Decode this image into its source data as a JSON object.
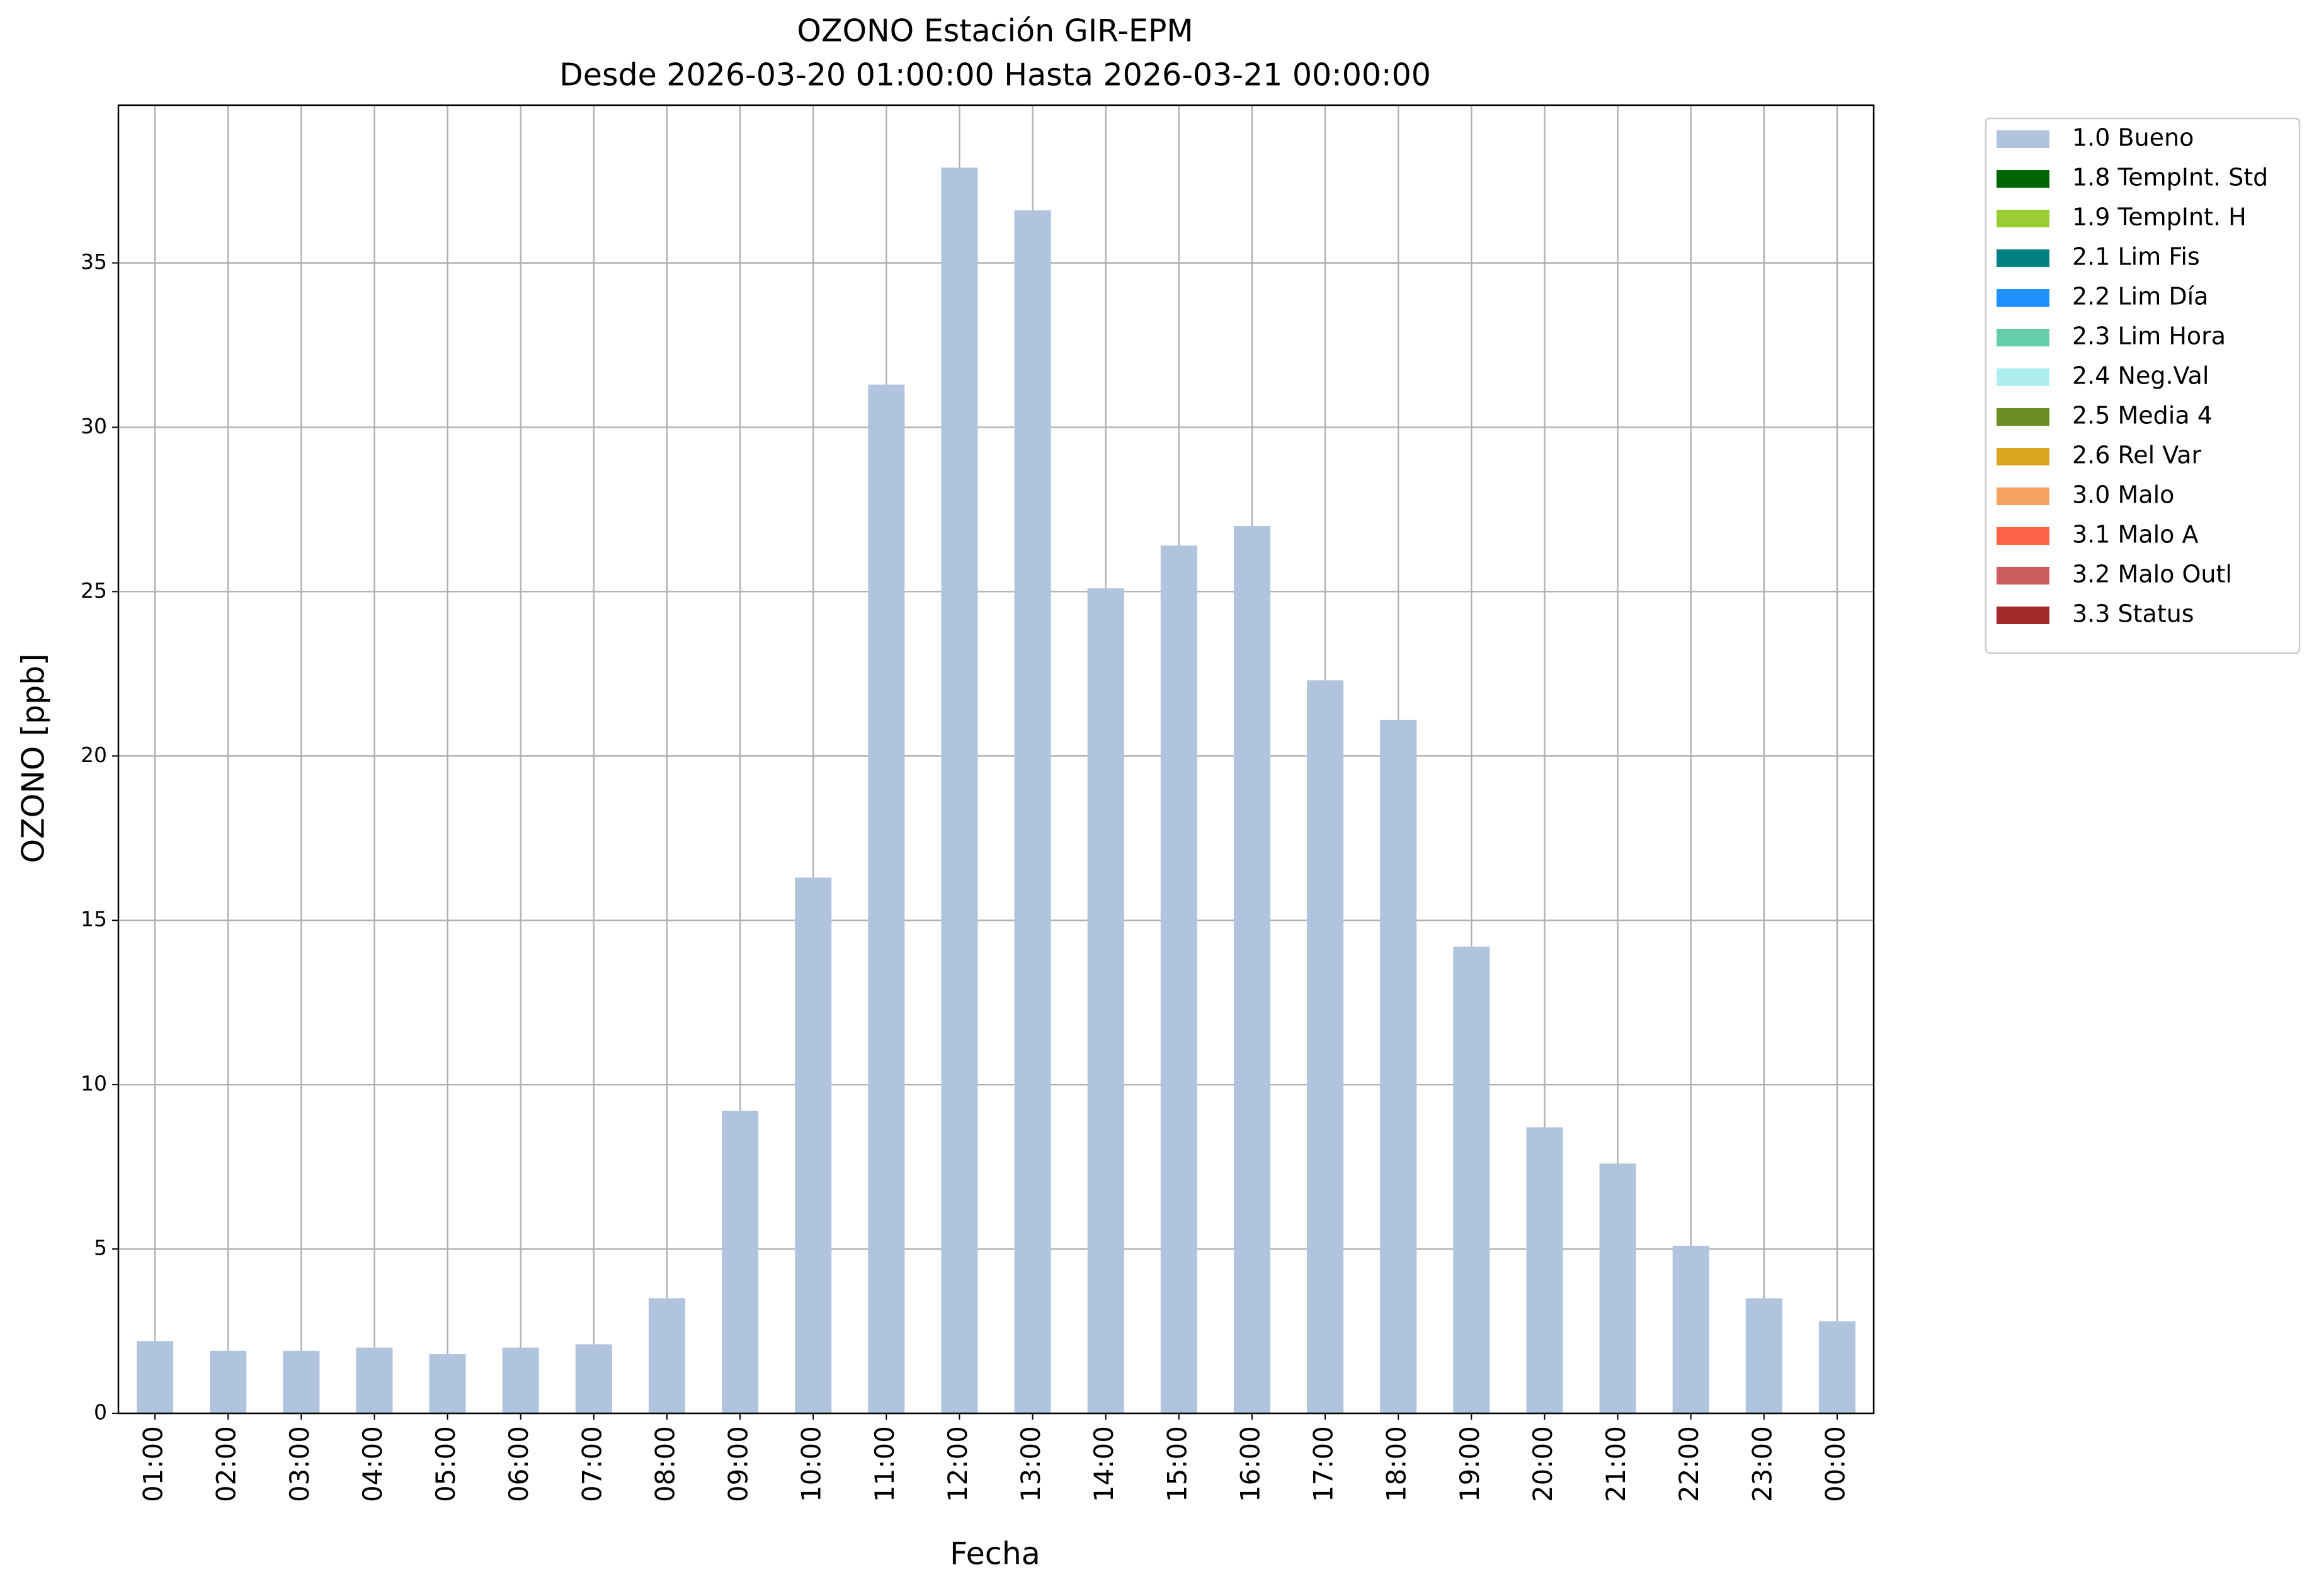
{
  "chart_data": {
    "type": "bar",
    "title": "OZONO Estación GIR-EPM",
    "subtitle": "Desde 2026-03-20 01:00:00 Hasta 2026-03-21 00:00:00",
    "x_label": "Fecha",
    "y_label": "OZONO [ppb]",
    "categories": [
      "01:00",
      "02:00",
      "03:00",
      "04:00",
      "05:00",
      "06:00",
      "07:00",
      "08:00",
      "09:00",
      "10:00",
      "11:00",
      "12:00",
      "13:00",
      "14:00",
      "15:00",
      "16:00",
      "17:00",
      "18:00",
      "19:00",
      "20:00",
      "21:00",
      "22:00",
      "23:00",
      "00:00"
    ],
    "series": [
      {
        "name": "1.0 Bueno",
        "color": "#b0c4de",
        "values": [
          2.2,
          1.9,
          1.9,
          2.0,
          1.8,
          2.0,
          2.1,
          3.5,
          9.2,
          16.3,
          31.3,
          37.9,
          36.6,
          25.1,
          26.4,
          27.0,
          22.3,
          21.1,
          14.2,
          8.7,
          7.6,
          5.1,
          3.5,
          2.8
        ]
      },
      {
        "name": "1.8 TempInt. Std",
        "color": "#006400",
        "values": [
          null,
          null,
          null,
          null,
          null,
          null,
          null,
          null,
          null,
          null,
          null,
          null,
          null,
          null,
          null,
          null,
          null,
          null,
          null,
          null,
          null,
          null,
          null,
          null
        ]
      },
      {
        "name": "1.9 TempInt. H",
        "color": "#9acd32",
        "values": [
          null,
          null,
          null,
          null,
          null,
          null,
          null,
          null,
          null,
          null,
          null,
          null,
          null,
          null,
          null,
          null,
          null,
          null,
          null,
          null,
          null,
          null,
          null,
          null
        ]
      },
      {
        "name": "2.1 Lim Fis",
        "color": "#008080",
        "values": [
          null,
          null,
          null,
          null,
          null,
          null,
          null,
          null,
          null,
          null,
          null,
          null,
          null,
          null,
          null,
          null,
          null,
          null,
          null,
          null,
          null,
          null,
          null,
          null
        ]
      },
      {
        "name": "2.2 Lim Día",
        "color": "#1e90ff",
        "values": [
          null,
          null,
          null,
          null,
          null,
          null,
          null,
          null,
          null,
          null,
          null,
          null,
          null,
          null,
          null,
          null,
          null,
          null,
          null,
          null,
          null,
          null,
          null,
          null
        ]
      },
      {
        "name": "2.3 Lim Hora",
        "color": "#66cdaa",
        "values": [
          null,
          null,
          null,
          null,
          null,
          null,
          null,
          null,
          null,
          null,
          null,
          null,
          null,
          null,
          null,
          null,
          null,
          null,
          null,
          null,
          null,
          null,
          null,
          null
        ]
      },
      {
        "name": "2.4 Neg.Val",
        "color": "#afeeee",
        "values": [
          null,
          null,
          null,
          null,
          null,
          null,
          null,
          null,
          null,
          null,
          null,
          null,
          null,
          null,
          null,
          null,
          null,
          null,
          null,
          null,
          null,
          null,
          null,
          null
        ]
      },
      {
        "name": "2.5 Media 4",
        "color": "#6b8e23",
        "values": [
          null,
          null,
          null,
          null,
          null,
          null,
          null,
          null,
          null,
          null,
          null,
          null,
          null,
          null,
          null,
          null,
          null,
          null,
          null,
          null,
          null,
          null,
          null,
          null
        ]
      },
      {
        "name": "2.6 Rel Var",
        "color": "#daa520",
        "values": [
          null,
          null,
          null,
          null,
          null,
          null,
          null,
          null,
          null,
          null,
          null,
          null,
          null,
          null,
          null,
          null,
          null,
          null,
          null,
          null,
          null,
          null,
          null,
          null
        ]
      },
      {
        "name": "3.0 Malo",
        "color": "#f4a460",
        "values": [
          null,
          null,
          null,
          null,
          null,
          null,
          null,
          null,
          null,
          null,
          null,
          null,
          null,
          null,
          null,
          null,
          null,
          null,
          null,
          null,
          null,
          null,
          null,
          null
        ]
      },
      {
        "name": "3.1 Malo A",
        "color": "#ff6347",
        "values": [
          null,
          null,
          null,
          null,
          null,
          null,
          null,
          null,
          null,
          null,
          null,
          null,
          null,
          null,
          null,
          null,
          null,
          null,
          null,
          null,
          null,
          null,
          null,
          null
        ]
      },
      {
        "name": "3.2 Malo Outl",
        "color": "#cd5c5c",
        "values": [
          null,
          null,
          null,
          null,
          null,
          null,
          null,
          null,
          null,
          null,
          null,
          null,
          null,
          null,
          null,
          null,
          null,
          null,
          null,
          null,
          null,
          null,
          null,
          null
        ]
      },
      {
        "name": "3.3 Status",
        "color": "#a52a2a",
        "values": [
          null,
          null,
          null,
          null,
          null,
          null,
          null,
          null,
          null,
          null,
          null,
          null,
          null,
          null,
          null,
          null,
          null,
          null,
          null,
          null,
          null,
          null,
          null,
          null
        ]
      }
    ],
    "ylim": [
      0,
      39.8
    ],
    "yticks": [
      0,
      5,
      10,
      15,
      20,
      25,
      30,
      35
    ],
    "grid": true,
    "legend": "outside upper right"
  }
}
